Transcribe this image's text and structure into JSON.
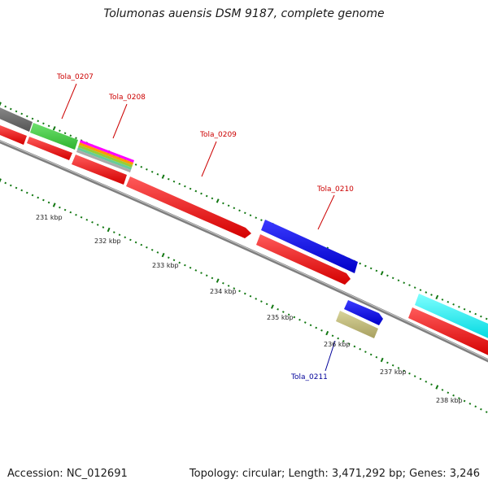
{
  "title": "Tolumonas auensis DSM 9187, complete genome",
  "footer": {
    "accession": "Accession: NC_012691",
    "topology": "Topology: circular; Length: 3,471,292 bp; Genes: 3,246"
  },
  "colors": {
    "backbone": "#7f7f7f",
    "cds_reverse": "#ff0000",
    "tick_dots": "#117711",
    "label_red": "#cc0000",
    "label_blue": "#000099"
  },
  "scale_labels": [
    "231 kbp",
    "232 kbp",
    "233 kbp",
    "234 kbp",
    "235 kbp",
    "236 kbp",
    "237 kbp",
    "238 kbp"
  ],
  "gene_labels": [
    {
      "name": "Tola_0207",
      "color": "red"
    },
    {
      "name": "Tola_0208",
      "color": "red"
    },
    {
      "name": "Tola_0209",
      "color": "red"
    },
    {
      "name": "Tola_0210",
      "color": "red"
    },
    {
      "name": "Tola_0211",
      "color": "blue"
    }
  ]
}
